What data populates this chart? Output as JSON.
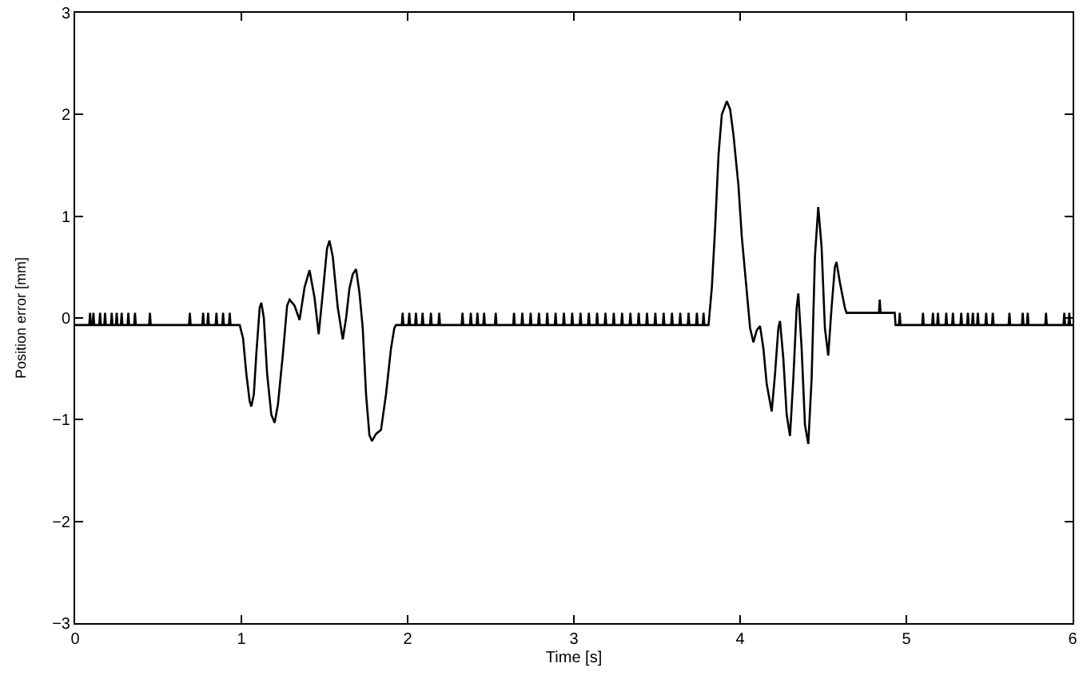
{
  "chart_data": {
    "type": "line",
    "xlabel": "Time [s]",
    "ylabel": "Position error [mm]",
    "x": [
      0,
      0.085,
      0.09,
      0.095,
      0.105,
      0.11,
      0.115,
      0.145,
      0.15,
      0.155,
      0.175,
      0.18,
      0.185,
      0.215,
      0.22,
      0.225,
      0.245,
      0.25,
      0.255,
      0.275,
      0.28,
      0.285,
      0.315,
      0.32,
      0.325,
      0.355,
      0.36,
      0.365,
      0.445,
      0.45,
      0.455,
      0.685,
      0.69,
      0.695,
      0.765,
      0.77,
      0.775,
      0.795,
      0.8,
      0.805,
      0.845,
      0.85,
      0.855,
      0.885,
      0.89,
      0.895,
      0.925,
      0.93,
      0.935,
      0.99,
      1.01,
      1.03,
      1.05,
      1.06,
      1.075,
      1.09,
      1.11,
      1.12,
      1.135,
      1.155,
      1.18,
      1.2,
      1.22,
      1.25,
      1.275,
      1.29,
      1.32,
      1.35,
      1.38,
      1.41,
      1.44,
      1.465,
      1.49,
      1.515,
      1.53,
      1.55,
      1.58,
      1.61,
      1.63,
      1.65,
      1.67,
      1.69,
      1.71,
      1.73,
      1.75,
      1.77,
      1.785,
      1.81,
      1.84,
      1.87,
      1.9,
      1.92,
      1.93,
      1.965,
      1.97,
      1.975,
      2.005,
      2.01,
      2.015,
      2.045,
      2.05,
      2.055,
      2.085,
      2.09,
      2.095,
      2.135,
      2.14,
      2.145,
      2.185,
      2.19,
      2.195,
      2.325,
      2.33,
      2.335,
      2.375,
      2.38,
      2.385,
      2.415,
      2.42,
      2.425,
      2.455,
      2.46,
      2.465,
      2.525,
      2.53,
      2.535,
      2.635,
      2.64,
      2.645,
      2.685,
      2.69,
      2.695,
      2.735,
      2.74,
      2.745,
      2.785,
      2.79,
      2.795,
      2.835,
      2.84,
      2.845,
      2.885,
      2.89,
      2.895,
      2.935,
      2.94,
      2.945,
      2.985,
      2.99,
      2.995,
      3.035,
      3.04,
      3.045,
      3.085,
      3.09,
      3.095,
      3.135,
      3.14,
      3.145,
      3.185,
      3.19,
      3.195,
      3.235,
      3.24,
      3.245,
      3.285,
      3.29,
      3.295,
      3.335,
      3.34,
      3.345,
      3.385,
      3.39,
      3.395,
      3.435,
      3.44,
      3.445,
      3.485,
      3.49,
      3.495,
      3.535,
      3.54,
      3.545,
      3.585,
      3.59,
      3.595,
      3.635,
      3.64,
      3.645,
      3.685,
      3.69,
      3.695,
      3.735,
      3.74,
      3.745,
      3.775,
      3.78,
      3.785,
      3.81,
      3.83,
      3.85,
      3.87,
      3.89,
      3.92,
      3.94,
      3.96,
      3.99,
      4.01,
      4.04,
      4.06,
      4.08,
      4.1,
      4.12,
      4.14,
      4.16,
      4.19,
      4.21,
      4.23,
      4.24,
      4.26,
      4.28,
      4.3,
      4.32,
      4.34,
      4.35,
      4.37,
      4.39,
      4.41,
      4.43,
      4.45,
      4.47,
      4.49,
      4.51,
      4.53,
      4.55,
      4.57,
      4.58,
      4.6,
      4.63,
      4.64,
      4.835,
      4.84,
      4.845,
      4.93,
      4.935,
      4.955,
      4.96,
      4.965,
      5.095,
      5.1,
      5.105,
      5.155,
      5.16,
      5.165,
      5.185,
      5.19,
      5.195,
      5.235,
      5.24,
      5.245,
      5.275,
      5.28,
      5.285,
      5.325,
      5.33,
      5.335,
      5.365,
      5.37,
      5.375,
      5.395,
      5.4,
      5.405,
      5.425,
      5.43,
      5.435,
      5.475,
      5.48,
      5.485,
      5.515,
      5.52,
      5.525,
      5.615,
      5.62,
      5.625,
      5.695,
      5.7,
      5.705,
      5.725,
      5.73,
      5.735,
      5.835,
      5.84,
      5.845,
      5.945,
      5.95,
      5.955,
      5.975,
      5.98,
      5.985,
      6
    ],
    "series": [
      {
        "color": "#000000",
        "values": [
          -0.07,
          -0.07,
          0.05,
          -0.07,
          -0.07,
          0.05,
          -0.07,
          -0.07,
          0.05,
          -0.07,
          -0.07,
          0.05,
          -0.07,
          -0.07,
          0.05,
          -0.07,
          -0.07,
          0.05,
          -0.07,
          -0.07,
          0.05,
          -0.07,
          -0.07,
          0.05,
          -0.07,
          -0.07,
          0.05,
          -0.07,
          -0.07,
          0.05,
          -0.07,
          -0.07,
          0.05,
          -0.07,
          -0.07,
          0.05,
          -0.07,
          -0.07,
          0.05,
          -0.07,
          -0.07,
          0.05,
          -0.07,
          -0.07,
          0.05,
          -0.07,
          -0.07,
          0.05,
          -0.07,
          -0.07,
          -0.2,
          -0.55,
          -0.82,
          -0.87,
          -0.75,
          -0.35,
          0.1,
          0.15,
          0.0,
          -0.55,
          -0.95,
          -1.03,
          -0.85,
          -0.35,
          0.12,
          0.18,
          0.12,
          -0.02,
          0.3,
          0.47,
          0.2,
          -0.16,
          0.25,
          0.68,
          0.76,
          0.6,
          0.1,
          -0.21,
          0.0,
          0.29,
          0.43,
          0.48,
          0.25,
          -0.1,
          -0.75,
          -1.15,
          -1.21,
          -1.14,
          -1.1,
          -0.75,
          -0.3,
          -0.1,
          -0.07,
          -0.07,
          0.05,
          -0.07,
          -0.07,
          0.05,
          -0.07,
          -0.07,
          0.05,
          -0.07,
          -0.07,
          0.05,
          -0.07,
          -0.07,
          0.05,
          -0.07,
          -0.07,
          0.05,
          -0.07,
          -0.07,
          0.05,
          -0.07,
          -0.07,
          0.05,
          -0.07,
          -0.07,
          0.05,
          -0.07,
          -0.07,
          0.05,
          -0.07,
          -0.07,
          0.05,
          -0.07,
          -0.07,
          0.05,
          -0.07,
          -0.07,
          0.05,
          -0.07,
          -0.07,
          0.05,
          -0.07,
          -0.07,
          0.05,
          -0.07,
          -0.07,
          0.05,
          -0.07,
          -0.07,
          0.05,
          -0.07,
          -0.07,
          0.05,
          -0.07,
          -0.07,
          0.05,
          -0.07,
          -0.07,
          0.05,
          -0.07,
          -0.07,
          0.05,
          -0.07,
          -0.07,
          0.05,
          -0.07,
          -0.07,
          0.05,
          -0.07,
          -0.07,
          0.05,
          -0.07,
          -0.07,
          0.05,
          -0.07,
          -0.07,
          0.05,
          -0.07,
          -0.07,
          0.05,
          -0.07,
          -0.07,
          0.05,
          -0.07,
          -0.07,
          0.05,
          -0.07,
          -0.07,
          0.05,
          -0.07,
          -0.07,
          0.05,
          -0.07,
          -0.07,
          0.05,
          -0.07,
          -0.07,
          0.05,
          -0.07,
          -0.07,
          0.05,
          -0.07,
          -0.07,
          0.05,
          -0.07,
          -0.07,
          0.3,
          0.9,
          1.6,
          2.0,
          2.13,
          2.05,
          1.8,
          1.3,
          0.8,
          0.26,
          -0.1,
          -0.24,
          -0.12,
          -0.08,
          -0.3,
          -0.65,
          -0.92,
          -0.55,
          -0.1,
          -0.03,
          -0.4,
          -0.95,
          -1.16,
          -0.6,
          0.1,
          0.24,
          -0.3,
          -1.05,
          -1.24,
          -0.6,
          0.6,
          1.09,
          0.7,
          -0.1,
          -0.37,
          0.1,
          0.5,
          0.55,
          0.35,
          0.1,
          0.05,
          0.05,
          0.18,
          0.05,
          0.05,
          -0.07,
          -0.07,
          0.05,
          -0.07,
          -0.07,
          0.05,
          -0.07,
          -0.07,
          0.05,
          -0.07,
          -0.07,
          0.05,
          -0.07,
          -0.07,
          0.05,
          -0.07,
          -0.07,
          0.05,
          -0.07,
          -0.07,
          0.05,
          -0.07,
          -0.07,
          0.05,
          -0.07,
          -0.07,
          0.05,
          -0.07,
          -0.07,
          0.05,
          -0.07,
          -0.07,
          0.05,
          -0.07,
          -0.07,
          0.05,
          -0.07,
          -0.07,
          0.05,
          -0.07,
          -0.07,
          0.05,
          -0.07,
          -0.07,
          0.05,
          -0.07,
          -0.07,
          0.05,
          -0.07,
          -0.07,
          0.05,
          -0.07,
          -0.07,
          0.05,
          -0.07,
          -0.07
        ]
      }
    ],
    "xlim": [
      0,
      6
    ],
    "ylim": [
      -3,
      3
    ],
    "xticks": [
      0,
      1,
      2,
      3,
      4,
      5,
      6
    ],
    "yticks": [
      -3,
      -2,
      -1,
      0,
      1,
      2,
      3
    ]
  }
}
